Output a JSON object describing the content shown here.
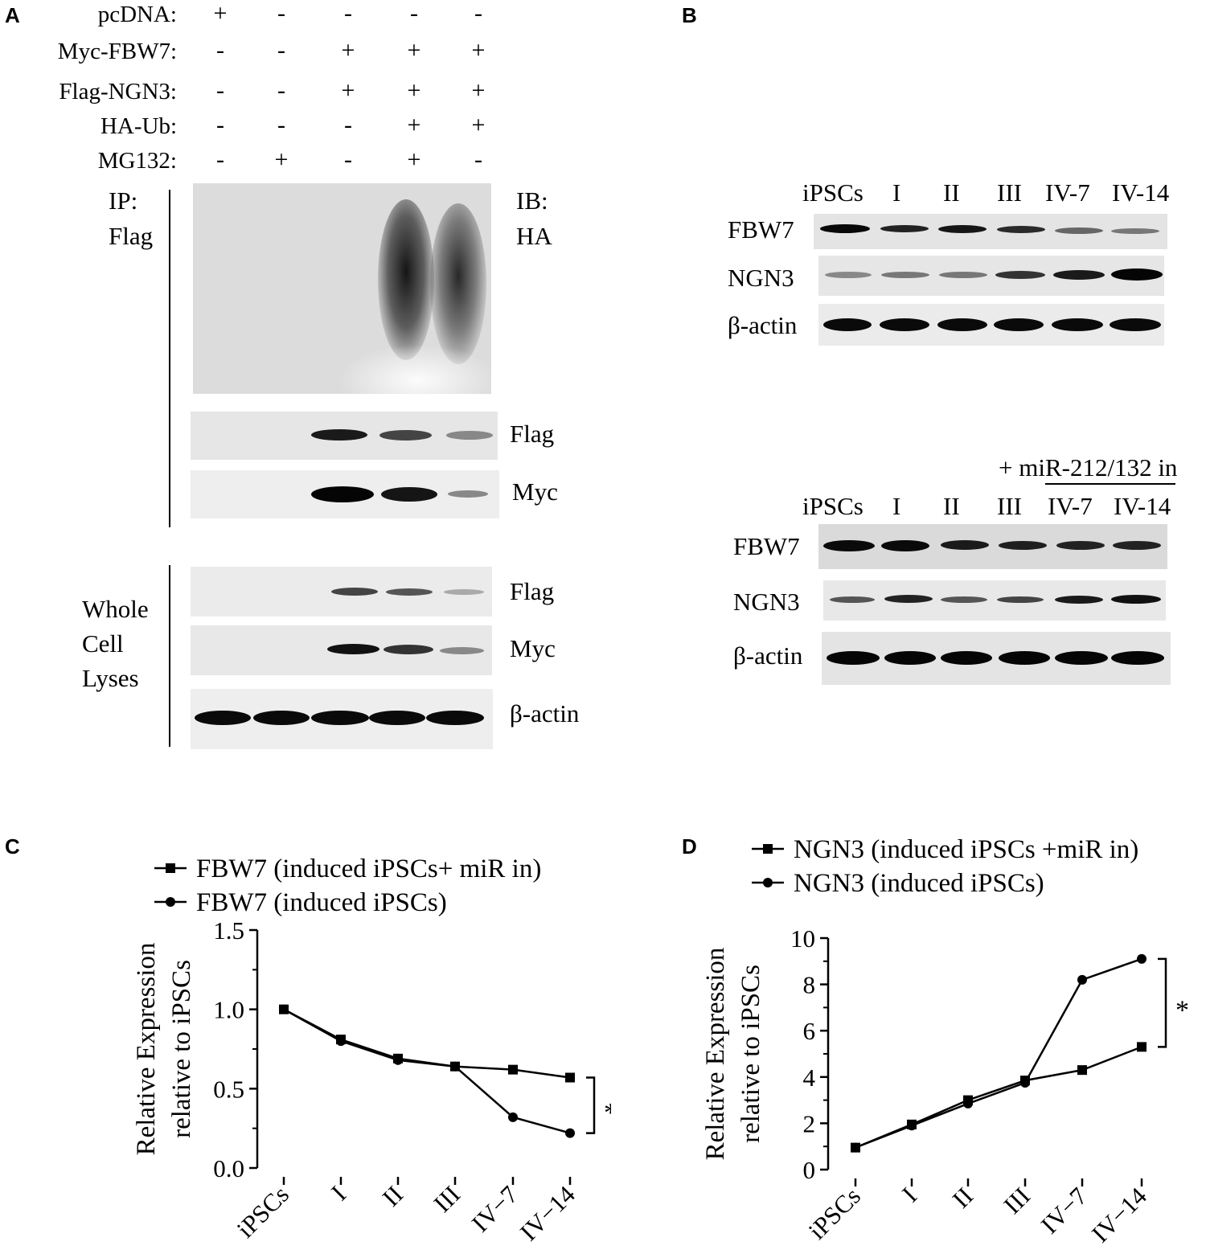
{
  "panels": {
    "A": "A",
    "B": "B",
    "C": "C",
    "D": "D"
  },
  "panelA": {
    "conditions": [
      {
        "label": "pcDNA:",
        "signs": [
          "+",
          "-",
          "-",
          "-",
          "-"
        ]
      },
      {
        "label": "Myc-FBW7:",
        "signs": [
          "-",
          "-",
          "+",
          "+",
          "+"
        ]
      },
      {
        "label": "Flag-NGN3:",
        "signs": [
          "-",
          "-",
          "+",
          "+",
          "+"
        ]
      },
      {
        "label": "HA-Ub:",
        "signs": [
          "-",
          "-",
          "-",
          "+",
          "+"
        ]
      },
      {
        "label": "MG132:",
        "signs": [
          "-",
          "+",
          "-",
          "+",
          "-"
        ]
      }
    ],
    "ip_label": "IP:",
    "ip_target": "Flag",
    "ib_label": "IB:",
    "ib_target": "HA",
    "ip_blots": [
      "Flag",
      "Myc"
    ],
    "wcl_label_lines": [
      "Whole",
      "Cell",
      "Lyses"
    ],
    "wcl_blots": [
      "Flag",
      "Myc",
      "β-actin"
    ]
  },
  "panelB": {
    "top_lanes": [
      "iPSCs",
      "I",
      "II",
      "III",
      "IV-7",
      "IV-14"
    ],
    "top_rows": [
      "FBW7",
      "NGN3",
      "β-actin"
    ],
    "bottom_header": "+ miR-212/132 in",
    "bottom_lanes": [
      "iPSCs",
      "I",
      "II",
      "III",
      "IV-7",
      "IV-14"
    ],
    "bottom_rows": [
      "FBW7",
      "NGN3",
      "β-actin"
    ]
  },
  "chart_data": [
    {
      "type": "line",
      "panel": "C",
      "categories": [
        "iPSCs",
        "I",
        "II",
        "III",
        "IV−7",
        "IV−14"
      ],
      "series": [
        {
          "name": "FBW7 (induced iPSCs+ miR in)",
          "marker": "square",
          "values": [
            1.0,
            0.81,
            0.69,
            0.64,
            0.62,
            0.57
          ]
        },
        {
          "name": "FBW7 (induced iPSCs)",
          "marker": "circle",
          "values": [
            1.0,
            0.8,
            0.68,
            0.64,
            0.32,
            0.22
          ]
        }
      ],
      "ylabel_lines": [
        "Relative Expression",
        "relative to iPSCs"
      ],
      "ylim": [
        0.0,
        1.5
      ],
      "yticks": [
        "0.0",
        "0.5",
        "1.0",
        "1.5"
      ],
      "annotation": "*"
    },
    {
      "type": "line",
      "panel": "D",
      "categories": [
        "iPSCs",
        "I",
        "II",
        "III",
        "IV−7",
        "IV−14"
      ],
      "series": [
        {
          "name": "NGN3 (induced iPSCs +miR in)",
          "marker": "square",
          "values": [
            0.95,
            1.95,
            3.0,
            3.85,
            4.3,
            5.3
          ]
        },
        {
          "name": "NGN3 (induced iPSCs)",
          "marker": "circle",
          "values": [
            0.95,
            1.9,
            2.85,
            3.75,
            8.2,
            9.1
          ]
        }
      ],
      "ylabel_lines": [
        "Relative Expression",
        "relative to iPSCs"
      ],
      "ylim": [
        0,
        10
      ],
      "yticks": [
        "0",
        "2",
        "4",
        "6",
        "8",
        "10"
      ],
      "annotation": "*"
    }
  ]
}
